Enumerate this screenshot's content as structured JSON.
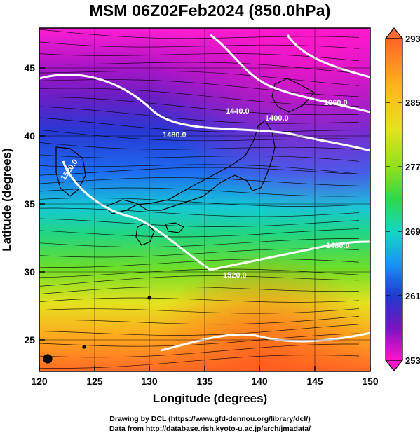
{
  "title": "MSM 06Z02Feb2024 (850.0hPa)",
  "x_axis": {
    "label": "Longitude (degrees)",
    "ticks": [
      "120",
      "125",
      "130",
      "135",
      "140",
      "145",
      "150"
    ],
    "range": [
      120,
      150
    ]
  },
  "y_axis": {
    "label": "Latitude  (degrees)",
    "ticks": [
      "25",
      "30",
      "35",
      "40",
      "45"
    ],
    "range": [
      22.4,
      47.6
    ]
  },
  "colorbar": {
    "ticks": [
      "293",
      "285",
      "277",
      "269",
      "261",
      "253"
    ],
    "range": [
      253,
      293
    ],
    "colors": [
      "#ff2a6a",
      "#ff7a2a",
      "#ffb21e",
      "#f3e21e",
      "#b6e41e",
      "#3cd83c",
      "#14d3c2",
      "#189cf2",
      "#1e3ccf",
      "#5a14b8",
      "#a010c0",
      "#ff10c8"
    ]
  },
  "contours": {
    "labels": [
      "1360.0",
      "1400.0",
      "1440.0",
      "1480.0",
      "1520.0",
      "1520.0",
      "1480.0"
    ]
  },
  "footer": {
    "line1": "Drawing by DCL (https://www.gfd-dennou.org/library/dcl/)",
    "line2": "Data from http://database.rish.kyoto-u.ac.jp/arch/jmadata/"
  }
}
